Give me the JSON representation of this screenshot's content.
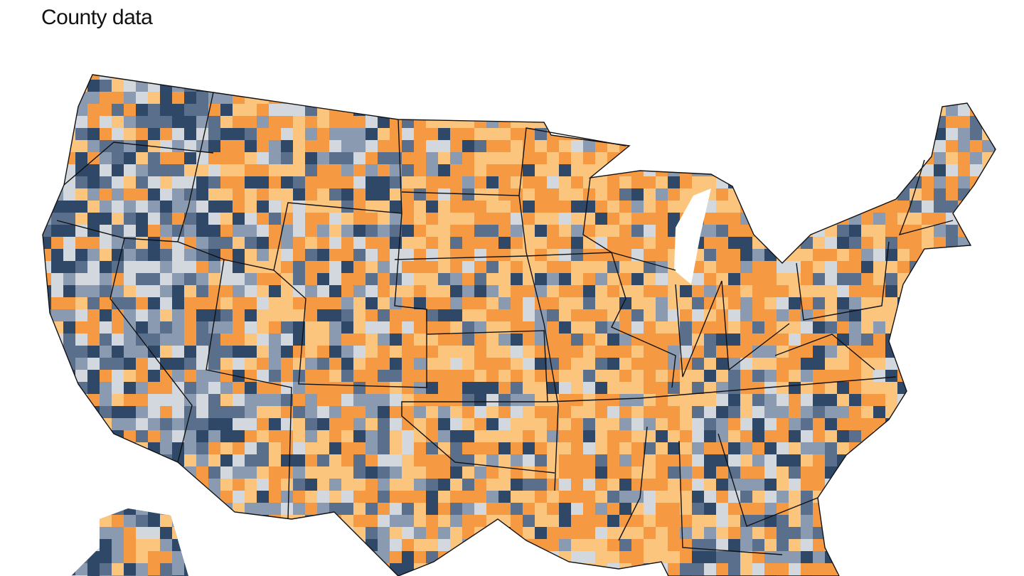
{
  "title": "County data"
}
